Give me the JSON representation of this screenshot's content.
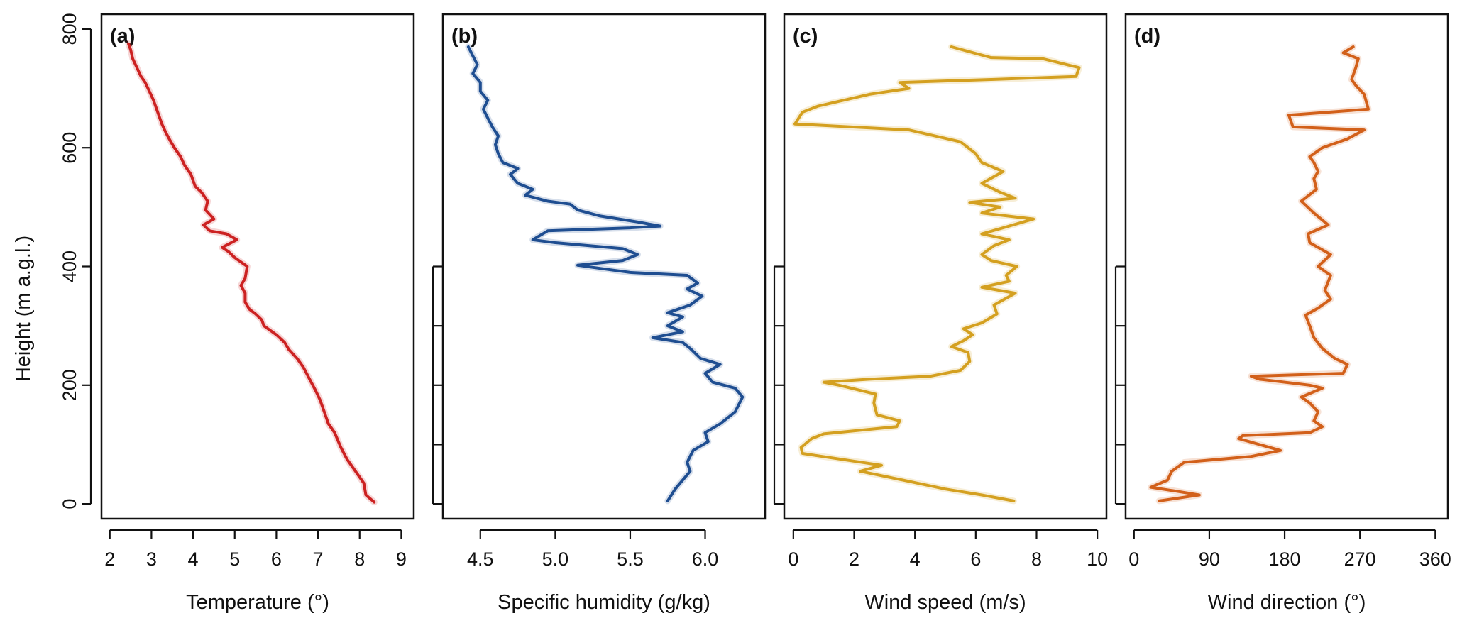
{
  "chart_data": [
    {
      "type": "line",
      "panel_label": "(a)",
      "xlabel": "Temperature (°)",
      "ylabel": "Height (m a.g.l.)",
      "xlim": [
        1.8,
        9.3
      ],
      "ylim": [
        -25,
        825
      ],
      "x_ticks": [
        2,
        3,
        4,
        5,
        6,
        7,
        8,
        9
      ],
      "x_tick_labels": [
        "2",
        "3",
        "4",
        "5",
        "6",
        "7",
        "8",
        "9"
      ],
      "y_ticks": [
        0,
        200,
        400,
        600,
        800
      ],
      "y_tick_labels": [
        "0",
        "200",
        "400",
        "600",
        "800"
      ],
      "color": "#cc2222",
      "points": [
        [
          8.35,
          3
        ],
        [
          8.15,
          15
        ],
        [
          8.1,
          35
        ],
        [
          7.9,
          55
        ],
        [
          7.7,
          75
        ],
        [
          7.55,
          95
        ],
        [
          7.4,
          120
        ],
        [
          7.25,
          135
        ],
        [
          7.15,
          155
        ],
        [
          7.05,
          175
        ],
        [
          6.95,
          190
        ],
        [
          6.8,
          210
        ],
        [
          6.65,
          230
        ],
        [
          6.5,
          245
        ],
        [
          6.3,
          260
        ],
        [
          6.2,
          272
        ],
        [
          6.0,
          285
        ],
        [
          5.7,
          300
        ],
        [
          5.65,
          310
        ],
        [
          5.5,
          320
        ],
        [
          5.35,
          328
        ],
        [
          5.25,
          340
        ],
        [
          5.25,
          355
        ],
        [
          5.15,
          368
        ],
        [
          5.25,
          380
        ],
        [
          5.3,
          400
        ],
        [
          5.0,
          415
        ],
        [
          4.85,
          425
        ],
        [
          4.7,
          432
        ],
        [
          5.05,
          445
        ],
        [
          4.8,
          455
        ],
        [
          4.4,
          460
        ],
        [
          4.25,
          470
        ],
        [
          4.5,
          480
        ],
        [
          4.3,
          495
        ],
        [
          4.35,
          510
        ],
        [
          4.2,
          525
        ],
        [
          4.05,
          535
        ],
        [
          3.95,
          555
        ],
        [
          3.8,
          570
        ],
        [
          3.7,
          585
        ],
        [
          3.55,
          600
        ],
        [
          3.45,
          612
        ],
        [
          3.35,
          625
        ],
        [
          3.25,
          640
        ],
        [
          3.15,
          660
        ],
        [
          3.05,
          680
        ],
        [
          2.95,
          695
        ],
        [
          2.85,
          710
        ],
        [
          2.75,
          720
        ],
        [
          2.65,
          735
        ],
        [
          2.55,
          750
        ],
        [
          2.5,
          765
        ],
        [
          2.45,
          775
        ]
      ]
    },
    {
      "type": "line",
      "panel_label": "(b)",
      "xlabel": "Specific humidity (g/kg)",
      "xlim": [
        4.25,
        6.4
      ],
      "ylim": [
        -25,
        825
      ],
      "x_ticks": [
        4.5,
        5.0,
        5.5,
        6.0
      ],
      "x_tick_labels": [
        "4.5",
        "5.0",
        "5.5",
        "6.0"
      ],
      "y_ticks": [
        0,
        100,
        200,
        300,
        400
      ],
      "color": "#1f4e91",
      "points": [
        [
          5.75,
          5
        ],
        [
          5.8,
          25
        ],
        [
          5.85,
          40
        ],
        [
          5.9,
          55
        ],
        [
          5.88,
          70
        ],
        [
          5.92,
          90
        ],
        [
          6.02,
          105
        ],
        [
          6.0,
          120
        ],
        [
          6.1,
          135
        ],
        [
          6.2,
          155
        ],
        [
          6.25,
          180
        ],
        [
          6.2,
          195
        ],
        [
          6.05,
          205
        ],
        [
          6.0,
          220
        ],
        [
          6.1,
          235
        ],
        [
          5.97,
          245
        ],
        [
          5.9,
          262
        ],
        [
          5.85,
          272
        ],
        [
          5.65,
          280
        ],
        [
          5.85,
          290
        ],
        [
          5.75,
          300
        ],
        [
          5.85,
          315
        ],
        [
          5.75,
          322
        ],
        [
          5.9,
          335
        ],
        [
          5.98,
          350
        ],
        [
          5.88,
          362
        ],
        [
          5.95,
          372
        ],
        [
          5.88,
          385
        ],
        [
          5.5,
          390
        ],
        [
          5.35,
          395
        ],
        [
          5.15,
          402
        ],
        [
          5.45,
          410
        ],
        [
          5.55,
          420
        ],
        [
          5.45,
          430
        ],
        [
          5.0,
          440
        ],
        [
          4.85,
          445
        ],
        [
          4.95,
          460
        ],
        [
          5.5,
          465
        ],
        [
          5.7,
          468
        ],
        [
          5.55,
          475
        ],
        [
          5.3,
          485
        ],
        [
          5.15,
          495
        ],
        [
          5.1,
          505
        ],
        [
          4.95,
          510
        ],
        [
          4.8,
          520
        ],
        [
          4.85,
          530
        ],
        [
          4.75,
          540
        ],
        [
          4.7,
          555
        ],
        [
          4.75,
          565
        ],
        [
          4.65,
          575
        ],
        [
          4.62,
          590
        ],
        [
          4.6,
          605
        ],
        [
          4.62,
          620
        ],
        [
          4.58,
          635
        ],
        [
          4.55,
          650
        ],
        [
          4.52,
          665
        ],
        [
          4.55,
          680
        ],
        [
          4.5,
          695
        ],
        [
          4.5,
          710
        ],
        [
          4.45,
          725
        ],
        [
          4.48,
          740
        ],
        [
          4.45,
          755
        ],
        [
          4.42,
          770
        ]
      ]
    },
    {
      "type": "line",
      "panel_label": "(c)",
      "xlabel": "Wind speed (m/s)",
      "xlim": [
        -0.3,
        10.3
      ],
      "ylim": [
        -25,
        825
      ],
      "x_ticks": [
        0,
        2,
        4,
        6,
        8,
        10
      ],
      "x_tick_labels": [
        "0",
        "2",
        "4",
        "6",
        "8",
        "10"
      ],
      "y_ticks": [
        0,
        100,
        200,
        300,
        400
      ],
      "color": "#d4a020",
      "points": [
        [
          7.25,
          5
        ],
        [
          6.2,
          15
        ],
        [
          5.0,
          25
        ],
        [
          3.8,
          38
        ],
        [
          2.2,
          55
        ],
        [
          2.9,
          65
        ],
        [
          0.3,
          85
        ],
        [
          0.25,
          95
        ],
        [
          0.6,
          110
        ],
        [
          1.0,
          118
        ],
        [
          3.4,
          130
        ],
        [
          3.5,
          140
        ],
        [
          2.75,
          150
        ],
        [
          2.65,
          170
        ],
        [
          2.7,
          185
        ],
        [
          1.5,
          200
        ],
        [
          1.0,
          205
        ],
        [
          2.5,
          210
        ],
        [
          4.5,
          215
        ],
        [
          5.5,
          225
        ],
        [
          5.8,
          240
        ],
        [
          5.75,
          255
        ],
        [
          5.2,
          265
        ],
        [
          5.6,
          275
        ],
        [
          5.9,
          285
        ],
        [
          5.6,
          295
        ],
        [
          6.2,
          305
        ],
        [
          6.7,
          320
        ],
        [
          6.6,
          335
        ],
        [
          7.3,
          355
        ],
        [
          6.2,
          365
        ],
        [
          7.1,
          375
        ],
        [
          7.0,
          385
        ],
        [
          7.35,
          400
        ],
        [
          6.5,
          410
        ],
        [
          6.2,
          420
        ],
        [
          6.6,
          435
        ],
        [
          7.1,
          445
        ],
        [
          6.2,
          455
        ],
        [
          6.9,
          465
        ],
        [
          7.9,
          480
        ],
        [
          6.2,
          490
        ],
        [
          6.8,
          500
        ],
        [
          5.8,
          508
        ],
        [
          7.3,
          515
        ],
        [
          6.8,
          525
        ],
        [
          6.2,
          540
        ],
        [
          6.9,
          560
        ],
        [
          6.2,
          575
        ],
        [
          6.0,
          590
        ],
        [
          5.5,
          610
        ],
        [
          3.8,
          630
        ],
        [
          0.05,
          640
        ],
        [
          0.3,
          660
        ],
        [
          0.8,
          670
        ],
        [
          2.5,
          690
        ],
        [
          3.8,
          700
        ],
        [
          3.5,
          710
        ],
        [
          6.5,
          715
        ],
        [
          9.3,
          720
        ],
        [
          9.4,
          735
        ],
        [
          8.2,
          750
        ],
        [
          6.5,
          752
        ],
        [
          5.2,
          770
        ]
      ]
    },
    {
      "type": "line",
      "panel_label": "(d)",
      "xlabel": "Wind direction (°)",
      "xlim": [
        -10,
        375
      ],
      "ylim": [
        -25,
        825
      ],
      "x_ticks": [
        0,
        90,
        180,
        270,
        360
      ],
      "x_tick_labels": [
        "0",
        "90",
        "180",
        "270",
        "360"
      ],
      "y_ticks": [
        0,
        100,
        200,
        300,
        400
      ],
      "color": "#d2601a",
      "points": [
        [
          30,
          5
        ],
        [
          78,
          15
        ],
        [
          48,
          22
        ],
        [
          20,
          28
        ],
        [
          40,
          40
        ],
        [
          45,
          55
        ],
        [
          60,
          70
        ],
        [
          140,
          80
        ],
        [
          175,
          90
        ],
        [
          125,
          110
        ],
        [
          130,
          115
        ],
        [
          210,
          120
        ],
        [
          225,
          130
        ],
        [
          215,
          140
        ],
        [
          220,
          155
        ],
        [
          210,
          170
        ],
        [
          200,
          180
        ],
        [
          225,
          195
        ],
        [
          210,
          200
        ],
        [
          150,
          210
        ],
        [
          140,
          215
        ],
        [
          250,
          220
        ],
        [
          255,
          235
        ],
        [
          240,
          245
        ],
        [
          225,
          262
        ],
        [
          215,
          280
        ],
        [
          210,
          300
        ],
        [
          205,
          318
        ],
        [
          220,
          330
        ],
        [
          235,
          345
        ],
        [
          228,
          360
        ],
        [
          235,
          385
        ],
        [
          220,
          400
        ],
        [
          235,
          420
        ],
        [
          210,
          440
        ],
        [
          208,
          455
        ],
        [
          232,
          470
        ],
        [
          215,
          490
        ],
        [
          200,
          510
        ],
        [
          218,
          530
        ],
        [
          215,
          548
        ],
        [
          220,
          560
        ],
        [
          215,
          575
        ],
        [
          210,
          585
        ],
        [
          225,
          600
        ],
        [
          255,
          615
        ],
        [
          275,
          630
        ],
        [
          190,
          635
        ],
        [
          185,
          655
        ],
        [
          280,
          665
        ],
        [
          275,
          690
        ],
        [
          265,
          705
        ],
        [
          260,
          715
        ],
        [
          265,
          735
        ],
        [
          268,
          750
        ],
        [
          250,
          760
        ],
        [
          262,
          770
        ]
      ]
    }
  ]
}
